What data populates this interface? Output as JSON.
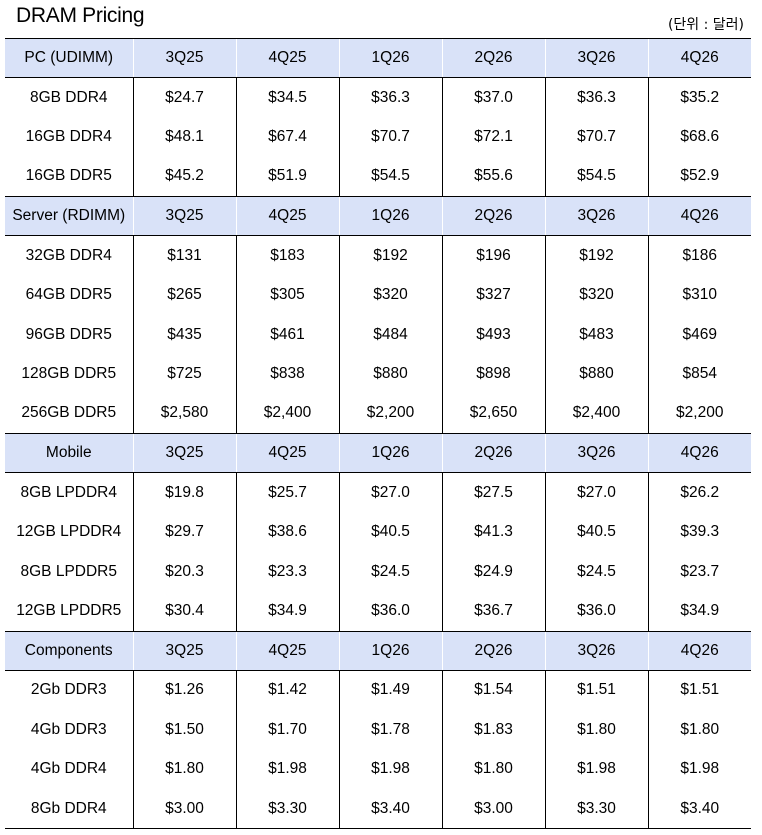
{
  "title": "DRAM Pricing",
  "unit": "(단위 : 달러)",
  "sections": [
    {
      "header": [
        "PC (UDIMM)",
        "3Q25",
        "4Q25",
        "1Q26",
        "2Q26",
        "3Q26",
        "4Q26"
      ],
      "rows": [
        [
          "8GB DDR4",
          "$24.7",
          "$34.5",
          "$36.3",
          "$37.0",
          "$36.3",
          "$35.2"
        ],
        [
          "16GB DDR4",
          "$48.1",
          "$67.4",
          "$70.7",
          "$72.1",
          "$70.7",
          "$68.6"
        ],
        [
          "16GB DDR5",
          "$45.2",
          "$51.9",
          "$54.5",
          "$55.6",
          "$54.5",
          "$52.9"
        ]
      ]
    },
    {
      "header": [
        "Server (RDIMM)",
        "3Q25",
        "4Q25",
        "1Q26",
        "2Q26",
        "3Q26",
        "4Q26"
      ],
      "rows": [
        [
          "32GB DDR4",
          "$131",
          "$183",
          "$192",
          "$196",
          "$192",
          "$186"
        ],
        [
          "64GB DDR5",
          "$265",
          "$305",
          "$320",
          "$327",
          "$320",
          "$310"
        ],
        [
          "96GB DDR5",
          "$435",
          "$461",
          "$484",
          "$493",
          "$483",
          "$469"
        ],
        [
          "128GB DDR5",
          "$725",
          "$838",
          "$880",
          "$898",
          "$880",
          "$854"
        ],
        [
          "256GB DDR5",
          "$2,580",
          "$2,400",
          "$2,200",
          "$2,650",
          "$2,400",
          "$2,200"
        ]
      ]
    },
    {
      "header": [
        "Mobile",
        "3Q25",
        "4Q25",
        "1Q26",
        "2Q26",
        "3Q26",
        "4Q26"
      ],
      "rows": [
        [
          "8GB LPDDR4",
          "$19.8",
          "$25.7",
          "$27.0",
          "$27.5",
          "$27.0",
          "$26.2"
        ],
        [
          "12GB LPDDR4",
          "$29.7",
          "$38.6",
          "$40.5",
          "$41.3",
          "$40.5",
          "$39.3"
        ],
        [
          "8GB LPDDR5",
          "$20.3",
          "$23.3",
          "$24.5",
          "$24.9",
          "$24.5",
          "$23.7"
        ],
        [
          "12GB LPDDR5",
          "$30.4",
          "$34.9",
          "$36.0",
          "$36.7",
          "$36.0",
          "$34.9"
        ]
      ]
    },
    {
      "header": [
        "Components",
        "3Q25",
        "4Q25",
        "1Q26",
        "2Q26",
        "3Q26",
        "4Q26"
      ],
      "rows": [
        [
          "2Gb DDR3",
          "$1.26",
          "$1.42",
          "$1.49",
          "$1.54",
          "$1.51",
          "$1.51"
        ],
        [
          "4Gb DDR3",
          "$1.50",
          "$1.70",
          "$1.78",
          "$1.83",
          "$1.80",
          "$1.80"
        ],
        [
          "4Gb DDR4",
          "$1.80",
          "$1.98",
          "$1.98",
          "$1.80",
          "$1.98",
          "$1.98"
        ],
        [
          "8Gb DDR4",
          "$3.00",
          "$3.30",
          "$3.40",
          "$3.00",
          "$3.30",
          "$3.40"
        ]
      ]
    }
  ]
}
